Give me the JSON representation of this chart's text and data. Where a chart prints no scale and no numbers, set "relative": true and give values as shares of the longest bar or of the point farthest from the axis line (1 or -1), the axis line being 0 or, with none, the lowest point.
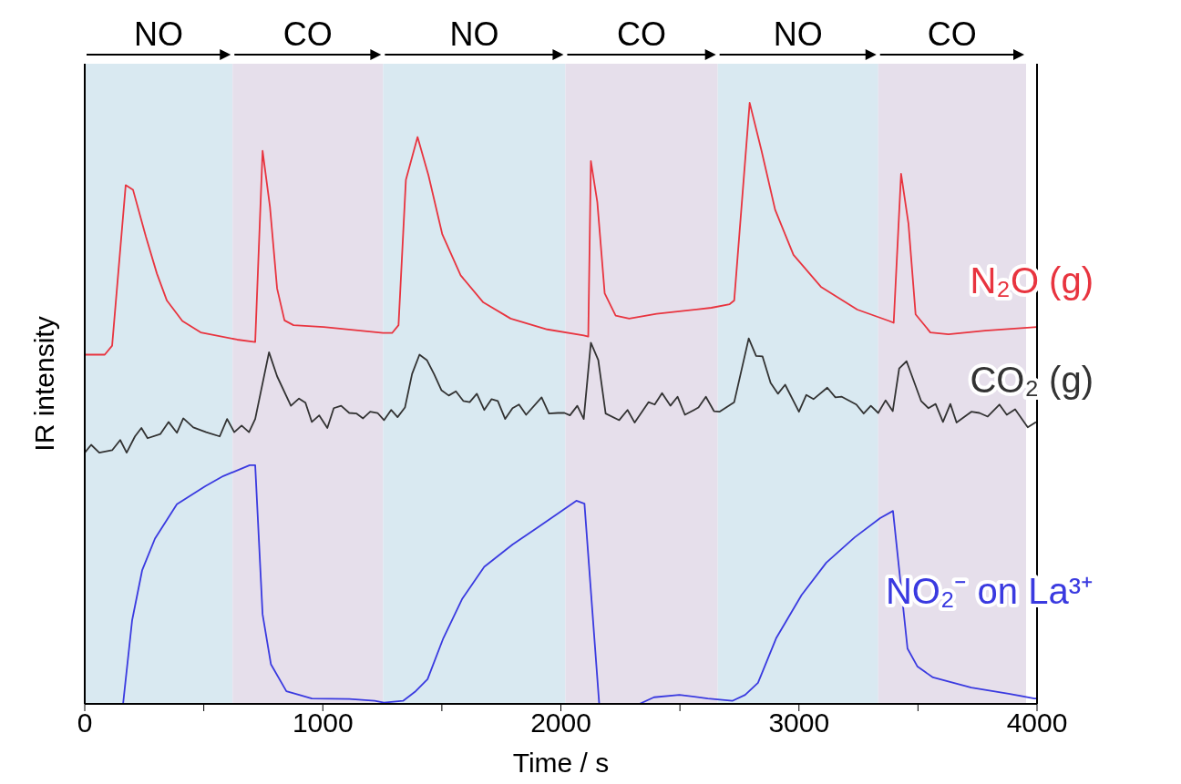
{
  "chart_data": {
    "type": "line",
    "xlabel": "Time / s",
    "ylabel": "IR intensity",
    "relative": true,
    "tick_labels": "x",
    "marker": "none",
    "line_style": "solid",
    "xlim": [
      0,
      4000
    ],
    "xticks": [
      0,
      {
        "value": 500,
        "label": null
      },
      1000,
      {
        "value": 1500,
        "label": null
      },
      2000,
      {
        "value": 2500,
        "label": null
      },
      3000,
      {
        "value": 3500,
        "label": null
      },
      4000
    ],
    "bands": [
      {
        "axis": "x",
        "from": 0,
        "to": 621,
        "label": "NO",
        "color": "#d9e9f1"
      },
      {
        "axis": "x",
        "from": 621,
        "to": 1253,
        "label": "CO",
        "color": "#e6dfeb"
      },
      {
        "axis": "x",
        "from": 1253,
        "to": 2019,
        "label": "NO",
        "color": "#d9e9f1"
      },
      {
        "axis": "x",
        "from": 2019,
        "to": 2659,
        "label": "CO",
        "color": "#e6dfeb"
      },
      {
        "axis": "x",
        "from": 2659,
        "to": 3333,
        "label": "NO",
        "color": "#d9e9f1"
      },
      {
        "axis": "x",
        "from": 3333,
        "to": 3954,
        "label": "CO",
        "color": "#e6dfeb"
      }
    ],
    "series": [
      {
        "name": "N₂O (g)",
        "color": "#e8343f",
        "x": [
          0,
          84,
          115,
          172,
          203,
          257,
          303,
          345,
          410,
          487,
          640,
          716,
          747,
          778,
          808,
          839,
          877,
          1004,
          1253,
          1291,
          1318,
          1349,
          1398,
          1444,
          1502,
          1579,
          1674,
          1789,
          1943,
          2096,
          2115,
          2126,
          2153,
          2184,
          2230,
          2287,
          2402,
          2632,
          2709,
          2728,
          2793,
          2843,
          2900,
          2977,
          3092,
          3245,
          3379,
          3398,
          3429,
          3460,
          3490,
          3552,
          3628,
          3782,
          4000
        ],
        "values": [
          0.581,
          0.581,
          0.596,
          0.863,
          0.855,
          0.777,
          0.716,
          0.671,
          0.637,
          0.618,
          0.606,
          0.602,
          0.92,
          0.827,
          0.691,
          0.638,
          0.63,
          0.627,
          0.617,
          0.617,
          0.63,
          0.872,
          0.943,
          0.879,
          0.781,
          0.713,
          0.668,
          0.641,
          0.623,
          0.613,
          0.611,
          0.903,
          0.835,
          0.683,
          0.646,
          0.641,
          0.649,
          0.659,
          0.665,
          0.671,
          1,
          0.92,
          0.822,
          0.747,
          0.694,
          0.656,
          0.637,
          0.634,
          0.882,
          0.799,
          0.648,
          0.618,
          0.615,
          0.621,
          0.627
        ]
      },
      {
        "name": "CO₂ (g)",
        "color": "#333333",
        "x": [
          0,
          27,
          61,
          115,
          149,
          176,
          211,
          238,
          264,
          318,
          352,
          387,
          414,
          456,
          510,
          567,
          598,
          628,
          659,
          690,
          716,
          774,
          808,
          866,
          900,
          927,
          954,
          985,
          1019,
          1046,
          1077,
          1111,
          1142,
          1169,
          1199,
          1230,
          1257,
          1287,
          1314,
          1345,
          1375,
          1406,
          1437,
          1467,
          1498,
          1529,
          1559,
          1590,
          1617,
          1647,
          1678,
          1709,
          1735,
          1766,
          1797,
          1824,
          1854,
          1919,
          1950,
          1988,
          2015,
          2038,
          2069,
          2096,
          2126,
          2157,
          2188,
          2245,
          2280,
          2310,
          2368,
          2394,
          2425,
          2460,
          2490,
          2521,
          2578,
          2609,
          2643,
          2666,
          2728,
          2789,
          2820,
          2847,
          2881,
          2912,
          2942,
          3000,
          3031,
          3061,
          3119,
          3153,
          3180,
          3241,
          3272,
          3302,
          3333,
          3364,
          3394,
          3421,
          3452,
          3513,
          3544,
          3574,
          3605,
          3636,
          3662,
          3724,
          3758,
          3793,
          3842,
          3873,
          3908,
          3961,
          3996
        ],
        "values": [
          0.418,
          0.431,
          0.418,
          0.422,
          0.439,
          0.418,
          0.445,
          0.459,
          0.442,
          0.449,
          0.469,
          0.451,
          0.475,
          0.46,
          0.452,
          0.445,
          0.474,
          0.452,
          0.463,
          0.452,
          0.474,
          0.585,
          0.545,
          0.496,
          0.508,
          0.501,
          0.469,
          0.48,
          0.459,
          0.492,
          0.496,
          0.484,
          0.483,
          0.475,
          0.486,
          0.484,
          0.472,
          0.489,
          0.477,
          0.493,
          0.549,
          0.581,
          0.572,
          0.549,
          0.522,
          0.513,
          0.52,
          0.504,
          0.502,
          0.516,
          0.489,
          0.507,
          0.504,
          0.474,
          0.492,
          0.498,
          0.481,
          0.51,
          0.483,
          0.484,
          0.484,
          0.48,
          0.496,
          0.474,
          0.601,
          0.572,
          0.483,
          0.472,
          0.489,
          0.468,
          0.502,
          0.498,
          0.517,
          0.496,
          0.511,
          0.481,
          0.493,
          0.511,
          0.487,
          0.486,
          0.502,
          0.608,
          0.579,
          0.578,
          0.534,
          0.516,
          0.531,
          0.486,
          0.514,
          0.507,
          0.526,
          0.51,
          0.511,
          0.498,
          0.483,
          0.496,
          0.484,
          0.505,
          0.487,
          0.558,
          0.57,
          0.504,
          0.492,
          0.499,
          0.469,
          0.499,
          0.468,
          0.486,
          0.484,
          0.478,
          0.498,
          0.481,
          0.49,
          0.46,
          0.469
        ]
      },
      {
        "name": "NO₂⁻ on La³⁺",
        "color": "#3a3ae0",
        "x": [
          0,
          161,
          199,
          241,
          295,
          387,
          506,
          582,
          693,
          716,
          747,
          782,
          847,
          954,
          1111,
          1218,
          1257,
          1337,
          1387,
          1440,
          1506,
          1586,
          1678,
          1797,
          1904,
          2065,
          2099,
          2161,
          2330,
          2391,
          2498,
          2617,
          2720,
          2774,
          2828,
          2904,
          3011,
          3115,
          3234,
          3341,
          3395,
          3456,
          3498,
          3563,
          3724,
          3881,
          3989,
          4000
        ],
        "values": [
          0,
          0,
          0.139,
          0.222,
          0.275,
          0.332,
          0.362,
          0.379,
          0.397,
          0.397,
          0.149,
          0.066,
          0.021,
          0.009,
          0.008,
          0.005,
          0.002,
          0.005,
          0.02,
          0.041,
          0.109,
          0.175,
          0.228,
          0.265,
          0.294,
          0.338,
          0.333,
          0,
          0,
          0.011,
          0.015,
          0.009,
          0.005,
          0.015,
          0.035,
          0.109,
          0.181,
          0.235,
          0.277,
          0.309,
          0.321,
          0.092,
          0.062,
          0.044,
          0.027,
          0.017,
          0.009,
          0.009
        ]
      }
    ]
  }
}
